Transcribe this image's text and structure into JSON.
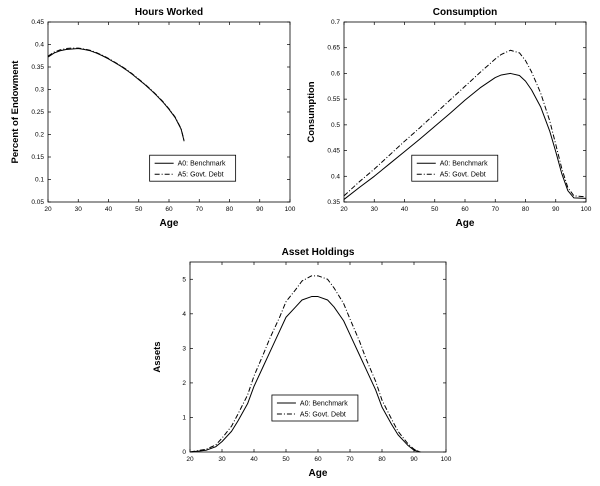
{
  "page": {
    "background": "#ffffff",
    "line_color": "#000000"
  },
  "chart_data": [
    {
      "type": "line",
      "title": "Hours Worked",
      "xlabel": "Age",
      "ylabel": "Percent of Endowment",
      "xlim": [
        20,
        100
      ],
      "ylim": [
        0.05,
        0.45
      ],
      "xticks": [
        20,
        30,
        40,
        50,
        60,
        70,
        80,
        90,
        100
      ],
      "yticks": [
        0.05,
        0.1,
        0.15,
        0.2,
        0.25,
        0.3,
        0.35,
        0.4,
        0.45
      ],
      "grid": false,
      "legend": {
        "position": {
          "x": 0.42,
          "y": 0.74
        }
      },
      "x": [
        20,
        22,
        24,
        26,
        28,
        30,
        32,
        34,
        36,
        38,
        40,
        42,
        44,
        46,
        48,
        50,
        52,
        54,
        56,
        58,
        60,
        62,
        64,
        65
      ],
      "series": [
        {
          "name": "A0: Benchmark",
          "style": "solid",
          "color": "#000000",
          "values": [
            0.372,
            0.381,
            0.386,
            0.389,
            0.39,
            0.391,
            0.389,
            0.386,
            0.381,
            0.375,
            0.368,
            0.36,
            0.352,
            0.343,
            0.333,
            0.322,
            0.311,
            0.299,
            0.286,
            0.272,
            0.256,
            0.238,
            0.212,
            0.185
          ]
        },
        {
          "name": "A5: Govt. Debt",
          "style": "dashdot",
          "color": "#000000",
          "values": [
            0.374,
            0.383,
            0.388,
            0.391,
            0.392,
            0.392,
            0.39,
            0.387,
            0.382,
            0.376,
            0.369,
            0.361,
            0.353,
            0.344,
            0.334,
            0.323,
            0.312,
            0.3,
            0.287,
            0.273,
            0.257,
            0.239,
            0.213,
            0.186
          ]
        }
      ]
    },
    {
      "type": "line",
      "title": "Consumption",
      "xlabel": "Age",
      "ylabel": "Consumption",
      "xlim": [
        20,
        100
      ],
      "ylim": [
        0.35,
        0.7
      ],
      "xticks": [
        20,
        30,
        40,
        50,
        60,
        70,
        80,
        90,
        100
      ],
      "yticks": [
        0.35,
        0.4,
        0.45,
        0.5,
        0.55,
        0.6,
        0.65,
        0.7
      ],
      "grid": false,
      "legend": {
        "position": {
          "x": 0.28,
          "y": 0.74
        }
      },
      "x": [
        20,
        25,
        30,
        35,
        40,
        45,
        50,
        55,
        60,
        65,
        70,
        72,
        75,
        78,
        80,
        82,
        85,
        88,
        90,
        92,
        94,
        96,
        100
      ],
      "series": [
        {
          "name": "A0: Benchmark",
          "style": "solid",
          "color": "#000000",
          "values": [
            0.355,
            0.378,
            0.4,
            0.424,
            0.448,
            0.472,
            0.497,
            0.522,
            0.548,
            0.572,
            0.592,
            0.597,
            0.6,
            0.596,
            0.585,
            0.568,
            0.535,
            0.488,
            0.448,
            0.405,
            0.372,
            0.358,
            0.357
          ]
        },
        {
          "name": "A5: Govt. Debt",
          "style": "dashdot",
          "color": "#000000",
          "values": [
            0.362,
            0.389,
            0.414,
            0.441,
            0.468,
            0.494,
            0.521,
            0.548,
            0.575,
            0.602,
            0.628,
            0.637,
            0.645,
            0.64,
            0.625,
            0.603,
            0.562,
            0.508,
            0.462,
            0.415,
            0.378,
            0.362,
            0.36
          ]
        }
      ]
    },
    {
      "type": "line",
      "title": "Asset Holdings",
      "xlabel": "Age",
      "ylabel": "Assets",
      "xlim": [
        20,
        100
      ],
      "ylim": [
        0,
        5.5
      ],
      "xticks": [
        20,
        30,
        40,
        50,
        60,
        70,
        80,
        90,
        100
      ],
      "yticks": [
        0,
        1,
        2,
        3,
        4,
        5
      ],
      "grid": false,
      "legend": {
        "position": {
          "x": 0.32,
          "y": 0.7
        }
      },
      "x": [
        20,
        25,
        28,
        30,
        33,
        35,
        38,
        40,
        43,
        45,
        48,
        50,
        53,
        55,
        58,
        60,
        63,
        65,
        68,
        70,
        73,
        75,
        78,
        80,
        83,
        85,
        88,
        90,
        92
      ],
      "series": [
        {
          "name": "A0: Benchmark",
          "style": "solid",
          "color": "#000000",
          "values": [
            0.0,
            0.05,
            0.15,
            0.3,
            0.6,
            0.9,
            1.4,
            1.9,
            2.5,
            2.9,
            3.5,
            3.9,
            4.2,
            4.4,
            4.5,
            4.5,
            4.4,
            4.2,
            3.8,
            3.4,
            2.8,
            2.4,
            1.8,
            1.3,
            0.8,
            0.5,
            0.2,
            0.05,
            0.0
          ]
        },
        {
          "name": "A5: Govt. Debt",
          "style": "dashdot",
          "color": "#000000",
          "values": [
            0.0,
            0.08,
            0.2,
            0.4,
            0.75,
            1.1,
            1.65,
            2.2,
            2.85,
            3.3,
            3.9,
            4.35,
            4.7,
            4.95,
            5.1,
            5.1,
            5.0,
            4.75,
            4.3,
            3.85,
            3.2,
            2.7,
            2.05,
            1.5,
            0.95,
            0.6,
            0.25,
            0.08,
            0.0
          ]
        }
      ]
    }
  ]
}
